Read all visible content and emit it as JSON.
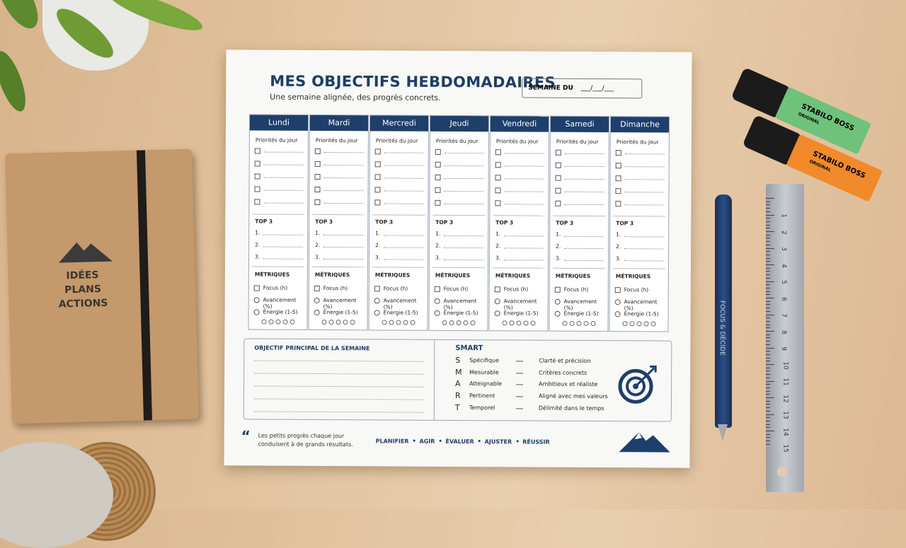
{
  "header": {
    "title": "MES OBJECTIFS HEBDOMADAIRES",
    "subtitle": "Une semaine alignée, des progrès concrets.",
    "week_label": "SEMAINE DU",
    "week_blank": "___/___/___"
  },
  "days": [
    "Lundi",
    "Mardi",
    "Mercredi",
    "Jeudi",
    "Vendredi",
    "Samedi",
    "Dimanche"
  ],
  "day_sections": {
    "priorities": "Priorités du jour",
    "top3": "TOP 3",
    "top3_items": [
      "1.",
      "2.",
      "3."
    ],
    "metrics": "MÉTRIQUES",
    "metric_items": [
      "Focus (h)",
      "Avancement (%)",
      "Énergie (1-5)"
    ]
  },
  "goal": {
    "title": "OBJECTIF PRINCIPAL DE LA SEMAINE"
  },
  "smart": {
    "title": "SMART",
    "items": [
      {
        "letter": "S",
        "word": "Spécifique",
        "desc": "Clarté et précision"
      },
      {
        "letter": "M",
        "word": "Mesurable",
        "desc": "Critères concrets"
      },
      {
        "letter": "A",
        "word": "Atteignable",
        "desc": "Ambitieux et réaliste"
      },
      {
        "letter": "R",
        "word": "Pertinent",
        "desc": "Aligné avec mes valeurs"
      },
      {
        "letter": "T",
        "word": "Temporel",
        "desc": "Délimité dans le temps"
      }
    ]
  },
  "footer": {
    "quote": "Les petits progrès chaque jour conduisent à de grands résultats.",
    "steps": [
      "PLANIFIER",
      "AGIR",
      "ÉVALUER",
      "AJUSTER",
      "RÉUSSIR"
    ]
  },
  "notebook": {
    "lines": [
      "IDÉES",
      "PLANS",
      "ACTIONS"
    ]
  },
  "highlighters": {
    "brand": "STABILO BOSS",
    "model": "ORIGINAL"
  },
  "pen": {
    "text": "FOCUS & DÉCIDE"
  },
  "ruler": {
    "numbers": [
      1,
      2,
      3,
      4,
      5,
      6,
      7,
      8,
      9,
      10,
      11,
      12,
      13,
      14,
      15
    ]
  }
}
